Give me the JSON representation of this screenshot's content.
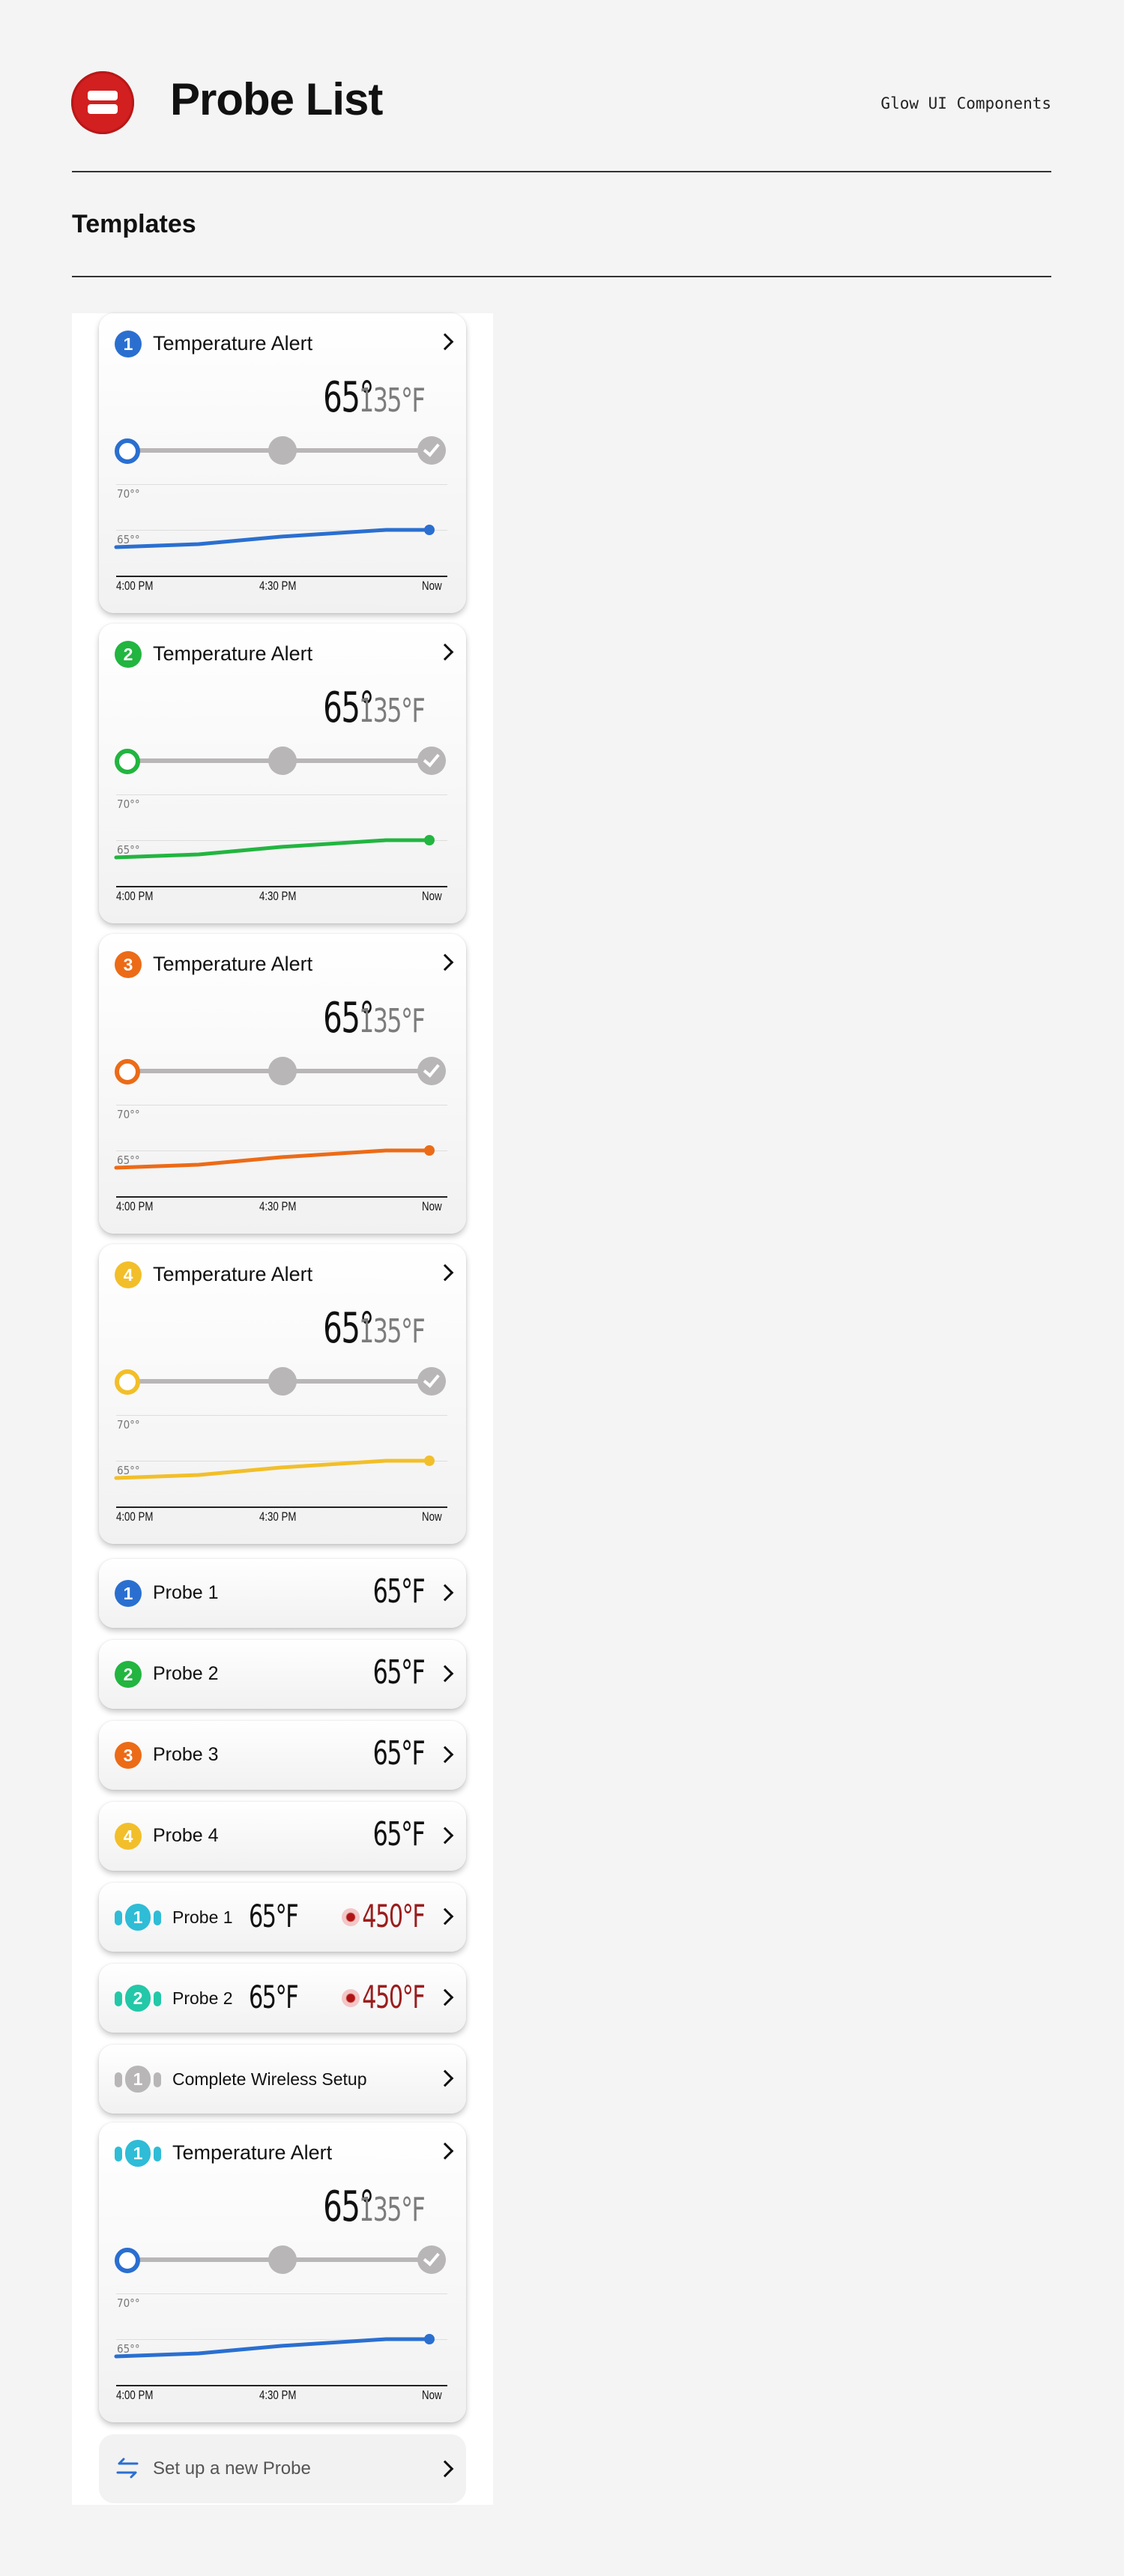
{
  "header": {
    "title": "Probe List",
    "brand": "Glow UI Components",
    "section": "Templates"
  },
  "colors": {
    "probe1": "#2a6fd0",
    "probe2": "#22b540",
    "probe3": "#ec6b17",
    "probe4": "#f2bf2a",
    "wireless1": "#2fbcd6",
    "wireless2": "#22c8a8",
    "inactive": "#b8b6b6",
    "brand_red": "#d21f1f",
    "target_red": "#9b1d1d"
  },
  "alert_cards": [
    {
      "badge": "1",
      "title": "Temperature Alert",
      "current": "65°",
      "target": "135°F",
      "y70": "70°°",
      "y65": "65°°",
      "x_labels": [
        "4:00 PM",
        "4:30 PM",
        "Now"
      ],
      "color_key": "probe1"
    },
    {
      "badge": "2",
      "title": "Temperature Alert",
      "current": "65°",
      "target": "135°F",
      "y70": "70°°",
      "y65": "65°°",
      "x_labels": [
        "4:00 PM",
        "4:30 PM",
        "Now"
      ],
      "color_key": "probe2"
    },
    {
      "badge": "3",
      "title": "Temperature Alert",
      "current": "65°",
      "target": "135°F",
      "y70": "70°°",
      "y65": "65°°",
      "x_labels": [
        "4:00 PM",
        "4:30 PM",
        "Now"
      ],
      "color_key": "probe3"
    },
    {
      "badge": "4",
      "title": "Temperature Alert",
      "current": "65°",
      "target": "135°F",
      "y70": "70°°",
      "y65": "65°°",
      "x_labels": [
        "4:00 PM",
        "4:30 PM",
        "Now"
      ],
      "color_key": "probe4"
    }
  ],
  "probe_rows": [
    {
      "badge": "1",
      "name": "Probe 1",
      "temp": "65°F"
    },
    {
      "badge": "2",
      "name": "Probe 2",
      "temp": "65°F"
    },
    {
      "badge": "3",
      "name": "Probe 3",
      "temp": "65°F"
    },
    {
      "badge": "4",
      "name": "Probe 4",
      "temp": "65°F"
    }
  ],
  "wireless_rows": [
    {
      "badge": "1",
      "name": "Probe 1",
      "temp": "65°F",
      "target": "450°F"
    },
    {
      "badge": "2",
      "name": "Probe 2",
      "temp": "65°F",
      "target": "450°F"
    }
  ],
  "setup_row": {
    "badge": "1",
    "label": "Complete Wireless Setup"
  },
  "wireless_alert": {
    "badge": "1",
    "title": "Temperature Alert",
    "current": "65°",
    "target": "135°F",
    "y70": "70°°",
    "y65": "65°°",
    "x_labels": [
      "4:00 PM",
      "4:30 PM",
      "Now"
    ]
  },
  "new_probe": {
    "label": "Set up a new Probe"
  },
  "icons": {
    "logo": "glow-logo-icon",
    "chevron": "chevron-right-icon",
    "check": "checkmark-icon",
    "flame": "heat-icon",
    "swap": "swap-arrows-icon"
  }
}
